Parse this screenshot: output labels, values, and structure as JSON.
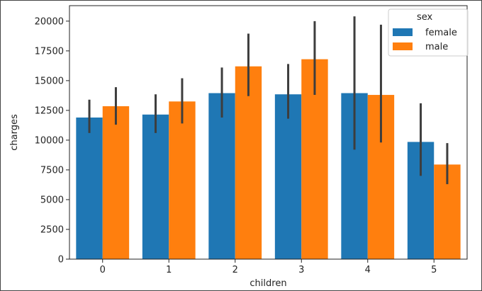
{
  "chart_data": {
    "type": "bar",
    "xlabel": "children",
    "ylabel": "charges",
    "categories": [
      "0",
      "1",
      "2",
      "3",
      "4",
      "5"
    ],
    "ylim": [
      0,
      21300
    ],
    "yticks": [
      0,
      2500,
      5000,
      7500,
      10000,
      12500,
      15000,
      17500,
      20000
    ],
    "legend": {
      "title": "sex",
      "position": "top-right"
    },
    "series": [
      {
        "name": "female",
        "color": "#1f77b4",
        "values": [
          11900,
          12150,
          13950,
          13850,
          13950,
          9850
        ],
        "ci_low": [
          10600,
          10600,
          11900,
          11800,
          9200,
          7000
        ],
        "ci_high": [
          13400,
          13850,
          16100,
          16400,
          20400,
          13100
        ]
      },
      {
        "name": "male",
        "color": "#ff7f0e",
        "values": [
          12850,
          13250,
          16200,
          16800,
          13800,
          7950
        ],
        "ci_low": [
          11300,
          11400,
          13700,
          13800,
          9800,
          6300
        ],
        "ci_high": [
          14450,
          15200,
          18950,
          20000,
          19700,
          9750
        ]
      }
    ]
  }
}
